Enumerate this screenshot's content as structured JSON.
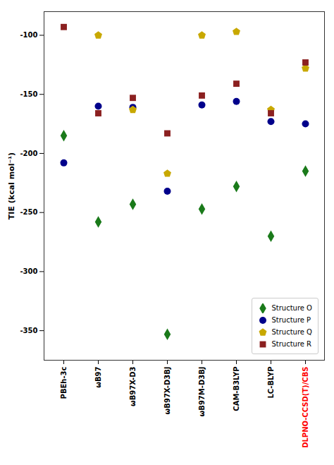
{
  "chart_data": {
    "type": "scatter",
    "categories": [
      "PBEh-3c",
      "ωB97",
      "ωB97X-D3",
      "ωB97X-D3BJ",
      "ωB97M-D3BJ",
      "CAM-B3LYP",
      "LC-BLYP",
      "DLPNO-CCSD(T)/CBS"
    ],
    "series": [
      {
        "name": "Structure O",
        "color": "#1a7a1a",
        "marker": "diamond",
        "values": [
          -185,
          -258,
          -243,
          -353,
          -247,
          -228,
          -270,
          -215
        ]
      },
      {
        "name": "Structure P",
        "color": "#00008b",
        "marker": "circle",
        "values": [
          -208,
          -160,
          -161,
          -232,
          -159,
          -156,
          -173,
          -175
        ]
      },
      {
        "name": "Structure Q",
        "color": "#c8a800",
        "marker": "pentagon",
        "values": [
          null,
          -100,
          -163,
          -217,
          -100,
          -97,
          -163,
          -128
        ]
      },
      {
        "name": "Structure R",
        "color": "#8b2020",
        "marker": "square",
        "values": [
          -93,
          -166,
          -153,
          -183,
          -151,
          -141,
          -166,
          -123
        ]
      }
    ],
    "ylabel": "TIE (kcal mol⁻¹)",
    "ylim": [
      -375,
      -80
    ],
    "yticks": [
      -100,
      -150,
      -200,
      -250,
      -300,
      -350
    ],
    "grid": false,
    "legend": "lower right"
  }
}
